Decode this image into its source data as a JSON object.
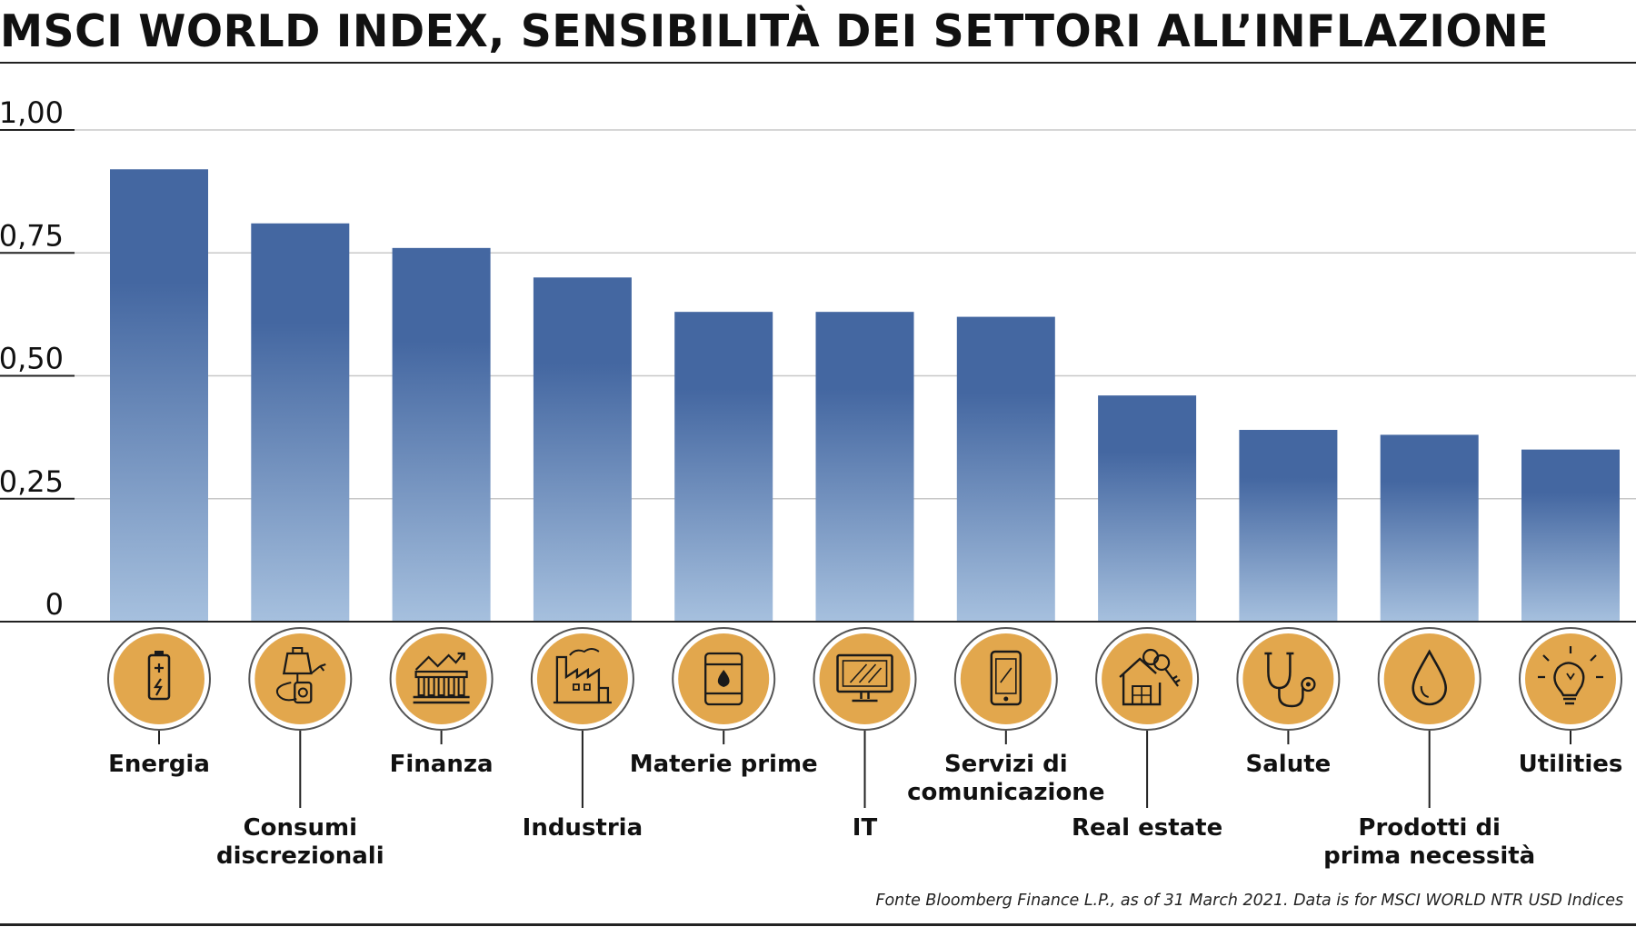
{
  "title": "MSCI WORLD INDEX, SENSIBILITÀ DEI SETTORI ALL’INFLAZIONE",
  "source": "Fonte Bloomberg Finance L.P., as of 31 March 2021. Data is for MSCI WORLD NTR USD Indices",
  "colors": {
    "bar_top": "#4467a1",
    "bar_bottom": "#a6c0de",
    "icon_fill": "#e2a74d",
    "icon_ring": "#555555",
    "grid": "#c8c8c8",
    "axis": "#222222"
  },
  "chart_data": {
    "type": "bar",
    "title": "MSCI WORLD INDEX, SENSIBILITÀ DEI SETTORI ALL’INFLAZIONE",
    "xlabel": "",
    "ylabel": "",
    "ylim": [
      0,
      1.0
    ],
    "y_ticks": [
      0,
      0.25,
      0.5,
      0.75,
      1.0
    ],
    "y_tick_labels": [
      "0",
      "0,25",
      "0,50",
      "0,75",
      "1,00"
    ],
    "grid": true,
    "categories": [
      "Energia",
      "Consumi discrezionali",
      "Finanza",
      "Industria",
      "Materie prime",
      "IT",
      "Servizi di comunicazione",
      "Real estate",
      "Salute",
      "Prodotti di prima necessità",
      "Utilities"
    ],
    "category_label_lines": [
      [
        "Energia"
      ],
      [
        "Consumi",
        "discrezionali"
      ],
      [
        "Finanza"
      ],
      [
        "Industria"
      ],
      [
        "Materie prime"
      ],
      [
        "IT"
      ],
      [
        "Servizi di",
        "comunicazione"
      ],
      [
        "Real estate"
      ],
      [
        "Salute"
      ],
      [
        "Prodotti di",
        "prima necessità"
      ],
      [
        "Utilities"
      ]
    ],
    "label_row": [
      "upper",
      "lower",
      "upper",
      "lower",
      "upper",
      "lower",
      "upper",
      "lower",
      "upper",
      "lower",
      "upper"
    ],
    "icons": [
      "battery-icon",
      "shopping-bag-plug-icon",
      "bank-chart-icon",
      "factory-icon",
      "oil-barrel-icon",
      "computer-monitor-icon",
      "smartphone-icon",
      "house-key-icon",
      "stethoscope-icon",
      "water-drop-icon",
      "lightbulb-icon"
    ],
    "values": [
      0.92,
      0.81,
      0.76,
      0.7,
      0.63,
      0.63,
      0.62,
      0.46,
      0.39,
      0.38,
      0.35
    ]
  }
}
